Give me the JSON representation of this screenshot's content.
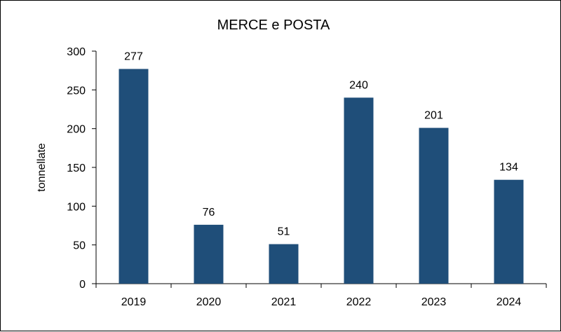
{
  "chart_data": {
    "type": "bar",
    "title": "MERCE e POSTA",
    "xlabel": "",
    "ylabel": "tonnellate",
    "categories": [
      "2019",
      "2020",
      "2021",
      "2022",
      "2023",
      "2024"
    ],
    "values": [
      277,
      76,
      51,
      240,
      201,
      134
    ],
    "data_labels": [
      "277",
      "76",
      "51",
      "240",
      "201",
      "134"
    ],
    "ylim": [
      0,
      300
    ],
    "yticks": [
      0,
      50,
      100,
      150,
      200,
      250,
      300
    ],
    "ytick_labels": [
      "0",
      "50",
      "100",
      "150",
      "200",
      "250",
      "300"
    ],
    "grid": false,
    "legend": "none",
    "bar_color": "#1f4e79"
  }
}
